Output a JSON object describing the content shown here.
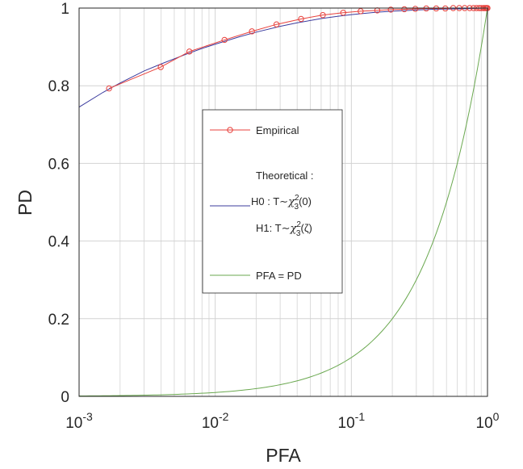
{
  "chart_data": {
    "type": "line",
    "xlabel": "PFA",
    "ylabel": "PD",
    "xscale": "log",
    "xlim": [
      0.001,
      1
    ],
    "ylim": [
      0,
      1
    ],
    "grid": "on (major and minor x, major y)",
    "x_ticks": [
      {
        "base": "10",
        "exp": "-3"
      },
      {
        "base": "10",
        "exp": "-2"
      },
      {
        "base": "10",
        "exp": "-1"
      },
      {
        "base": "10",
        "exp": "0"
      }
    ],
    "y_ticks": [
      "0",
      "0.2",
      "0.4",
      "0.6",
      "0.8",
      "1"
    ],
    "legend": {
      "placement": "center",
      "empirical": "Empirical",
      "theoretical_title": "Theoretical :",
      "h0_prefix": "H0 : T",
      "h0_arg": "(0)",
      "h1_prefix": "H1: T",
      "h1_arg": "(ζ)",
      "chi": "χ",
      "chi_sup": "2",
      "chi_sub": "3",
      "tilde": "∼",
      "diag": "PFA = PD"
    },
    "colors": {
      "empirical": "#e8413c",
      "theoretical": "#3b3b9e",
      "diagonal": "#6aa84f"
    },
    "series": [
      {
        "name": "Theoretical",
        "x": [
          0.001,
          0.0015,
          0.002,
          0.003,
          0.004,
          0.006,
          0.008,
          0.01,
          0.015,
          0.02,
          0.03,
          0.04,
          0.06,
          0.08,
          0.1,
          0.15,
          0.2,
          0.3,
          0.4,
          0.6,
          0.8,
          1.0
        ],
        "y": [
          0.745,
          0.783,
          0.807,
          0.838,
          0.856,
          0.88,
          0.896,
          0.907,
          0.926,
          0.938,
          0.953,
          0.962,
          0.973,
          0.979,
          0.983,
          0.989,
          0.992,
          0.995,
          0.997,
          0.998,
          0.999,
          1.0
        ]
      },
      {
        "name": "Empirical",
        "x": [
          0.00166,
          0.00398,
          0.00646,
          0.0117,
          0.0186,
          0.0282,
          0.0427,
          0.0617,
          0.0871,
          0.117,
          0.155,
          0.195,
          0.245,
          0.295,
          0.355,
          0.42,
          0.49,
          0.56,
          0.62,
          0.68,
          0.74,
          0.79,
          0.83,
          0.87,
          0.9,
          0.93,
          0.95,
          0.97,
          0.985,
          1.0
        ],
        "y": [
          0.793,
          0.848,
          0.888,
          0.918,
          0.94,
          0.958,
          0.972,
          0.982,
          0.988,
          0.992,
          0.994,
          0.996,
          0.997,
          0.998,
          0.999,
          0.999,
          0.999,
          1.0,
          1.0,
          1.0,
          1.0,
          1.0,
          1.0,
          1.0,
          1.0,
          1.0,
          1.0,
          1.0,
          1.0,
          1.0
        ]
      },
      {
        "name": "PFA = PD",
        "x": [
          0.001,
          0.002,
          0.005,
          0.01,
          0.02,
          0.05,
          0.1,
          0.2,
          0.3,
          0.5,
          0.7,
          1.0
        ],
        "y": [
          0.001,
          0.002,
          0.005,
          0.01,
          0.02,
          0.05,
          0.1,
          0.2,
          0.3,
          0.5,
          0.7,
          1.0
        ]
      }
    ]
  }
}
